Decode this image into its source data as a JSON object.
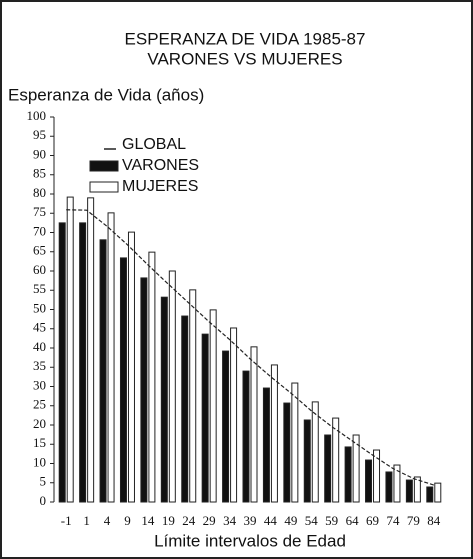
{
  "chart_data": {
    "type": "bar",
    "title": "ESPERANZA DE VIDA 1985-87",
    "subtitle": "VARONES VS MUJERES",
    "ylabel": "Esperanza de Vida (años)",
    "xlabel": "Límite intervalos de Edad",
    "categories": [
      "-1",
      "1",
      "4",
      "9",
      "14",
      "19",
      "24",
      "29",
      "34",
      "39",
      "44",
      "49",
      "54",
      "59",
      "64",
      "69",
      "74",
      "79",
      "84"
    ],
    "series": [
      {
        "name": "GLOBAL",
        "type": "line",
        "color": "#222",
        "values": [
          75.9,
          75.8,
          71.6,
          66.8,
          61.6,
          56.6,
          51.7,
          46.8,
          42.2,
          37.2,
          32.6,
          28.3,
          23.7,
          19.6,
          15.9,
          12.2,
          8.7,
          6.1,
          4.4
        ]
      },
      {
        "name": "VARONES",
        "color": "#111",
        "values": [
          72.5,
          72.5,
          68.1,
          63.4,
          58.2,
          53.2,
          48.3,
          43.6,
          39.2,
          34.0,
          29.6,
          25.7,
          21.3,
          17.4,
          14.3,
          10.9,
          7.8,
          5.7,
          3.9
        ]
      },
      {
        "name": "MUJERES",
        "color": "#fff",
        "values": [
          79.2,
          79.0,
          75.1,
          70.1,
          64.9,
          60.0,
          55.1,
          49.9,
          45.2,
          40.3,
          35.6,
          30.9,
          26.0,
          21.8,
          17.4,
          13.5,
          9.6,
          6.5,
          4.9
        ]
      }
    ],
    "ylim": [
      0,
      100
    ],
    "yticks": [
      0,
      5,
      10,
      15,
      20,
      25,
      30,
      35,
      40,
      45,
      50,
      55,
      60,
      65,
      70,
      75,
      80,
      85,
      90,
      95,
      100
    ]
  }
}
